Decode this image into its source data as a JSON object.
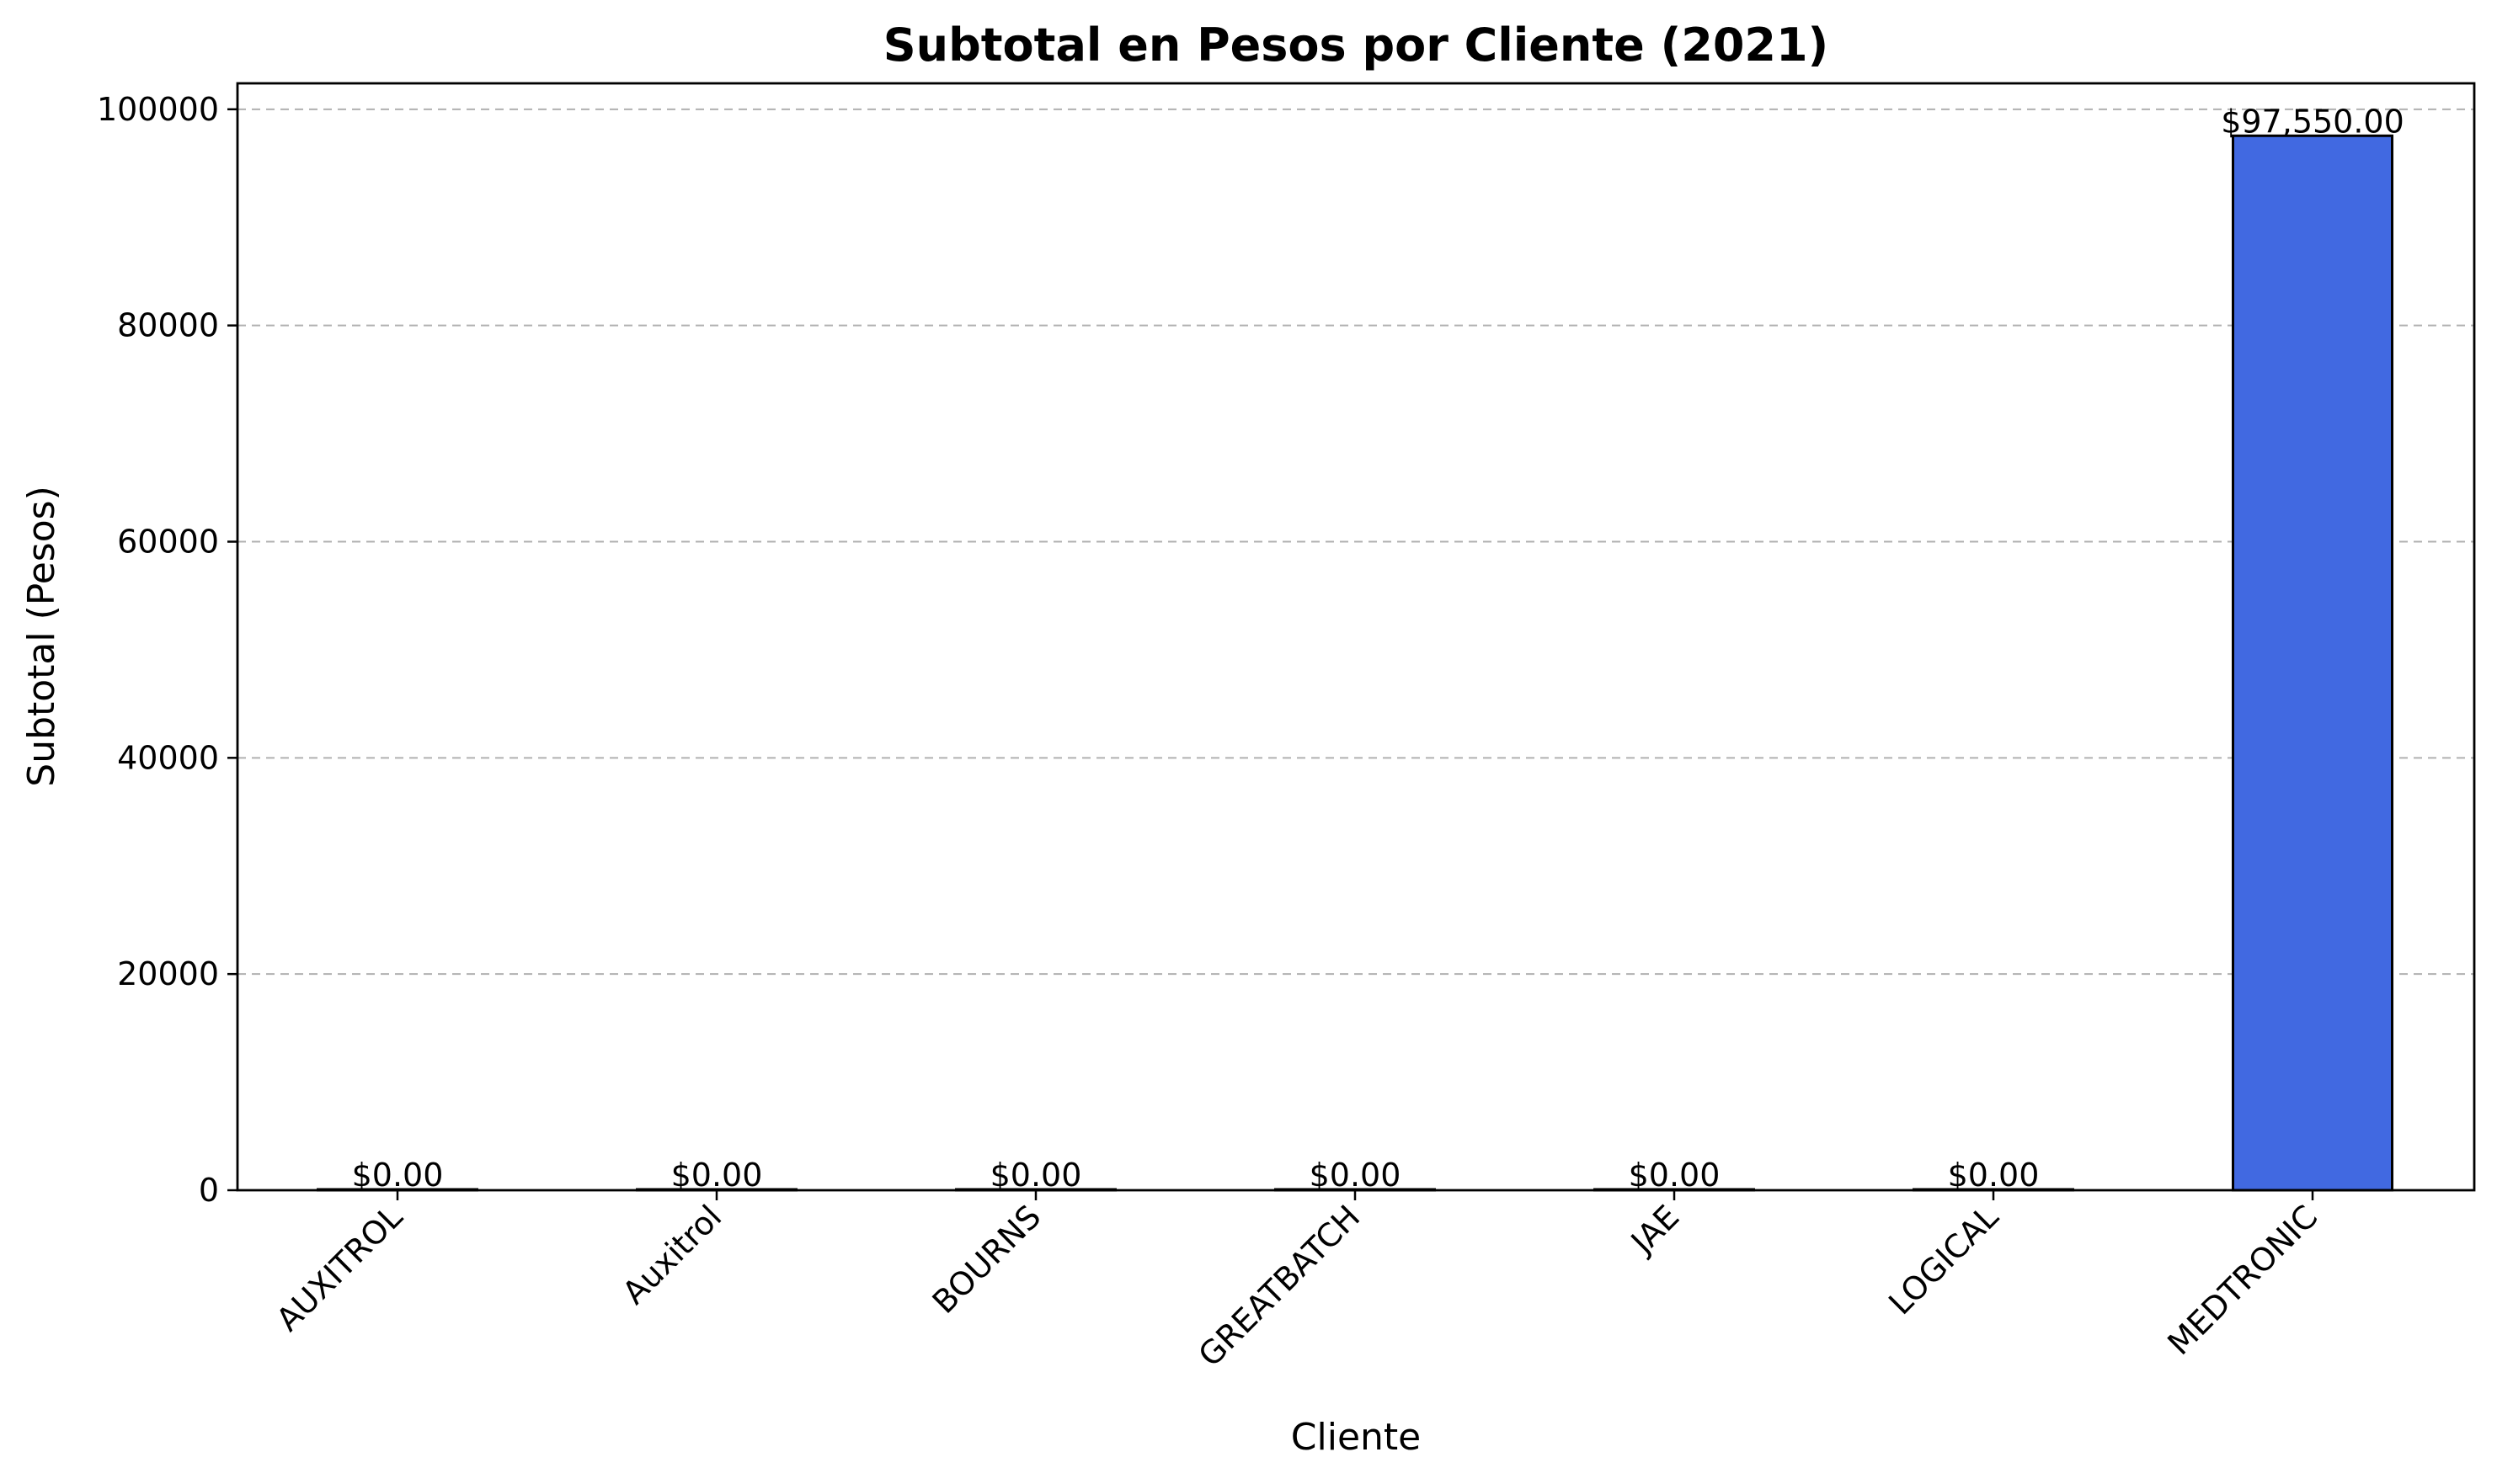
{
  "chart_data": {
    "type": "bar",
    "title": "Subtotal en Pesos por Cliente (2021)",
    "xlabel": "Cliente",
    "ylabel": "Subtotal (Pesos)",
    "categories": [
      "AUXITROL",
      "Auxitrol",
      "BOURNS",
      "GREATBATCH",
      "JAE",
      "LOGICAL",
      "MEDTRONIC"
    ],
    "values": [
      0,
      0,
      0,
      0,
      0,
      0,
      97550
    ],
    "data_labels": [
      "$0.00",
      "$0.00",
      "$0.00",
      "$0.00",
      "$0.00",
      "$0.00",
      "$97,550.00"
    ],
    "ylim": [
      0,
      102400
    ],
    "yticks": [
      0,
      20000,
      40000,
      60000,
      80000,
      100000
    ],
    "ytick_labels": [
      "0",
      "20000",
      "40000",
      "60000",
      "80000",
      "100000"
    ],
    "grid": "y-dashed",
    "bar_color": "#4169e1",
    "edge_color": "#000000"
  }
}
